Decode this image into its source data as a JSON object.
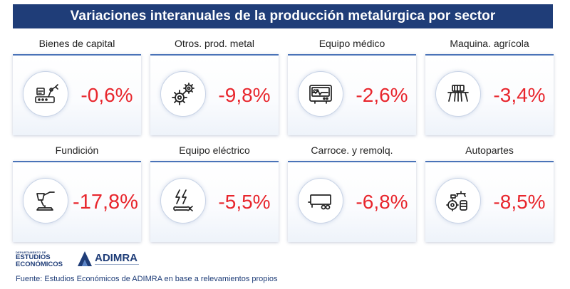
{
  "header": {
    "title": "Variaciones interanuales de la producción metalúrgica por sector"
  },
  "sectors": [
    {
      "label": "Bienes de capital",
      "value": "-0,6%",
      "icon": "capital-goods-robot-arm-icon"
    },
    {
      "label": "Otros. prod. metal",
      "value": "-9,8%",
      "icon": "gears-icon"
    },
    {
      "label": "Equipo médico",
      "value": "-2,6%",
      "icon": "heart-monitor-icon"
    },
    {
      "label": "Maquina. agrícola",
      "value": "-3,4%",
      "icon": "seeder-machine-icon"
    },
    {
      "label": "Fundición",
      "value": "-17,8%",
      "icon": "foundry-ladle-icon"
    },
    {
      "label": "Equipo eléctrico",
      "value": "-5,5%",
      "icon": "lightning-wrench-icon"
    },
    {
      "label": "Carroce. y remolq.",
      "value": "-6,8%",
      "icon": "trailer-icon"
    },
    {
      "label": "Autopartes",
      "value": "-8,5%",
      "icon": "auto-parts-icon"
    }
  ],
  "colors": {
    "header_bg": "#1f3d78",
    "value_red": "#e8262d",
    "card_accent": "#4a73b8"
  },
  "logos": {
    "dept_small": "DEPARTAMENTO DE",
    "dept_line1": "ESTUDIOS",
    "dept_line2": "ECONÓMICOS",
    "adimra": "ADIMRA"
  },
  "footer": {
    "source": "Fuente: Estudios Económicos de ADIMRA en base a relevamientos propios"
  }
}
